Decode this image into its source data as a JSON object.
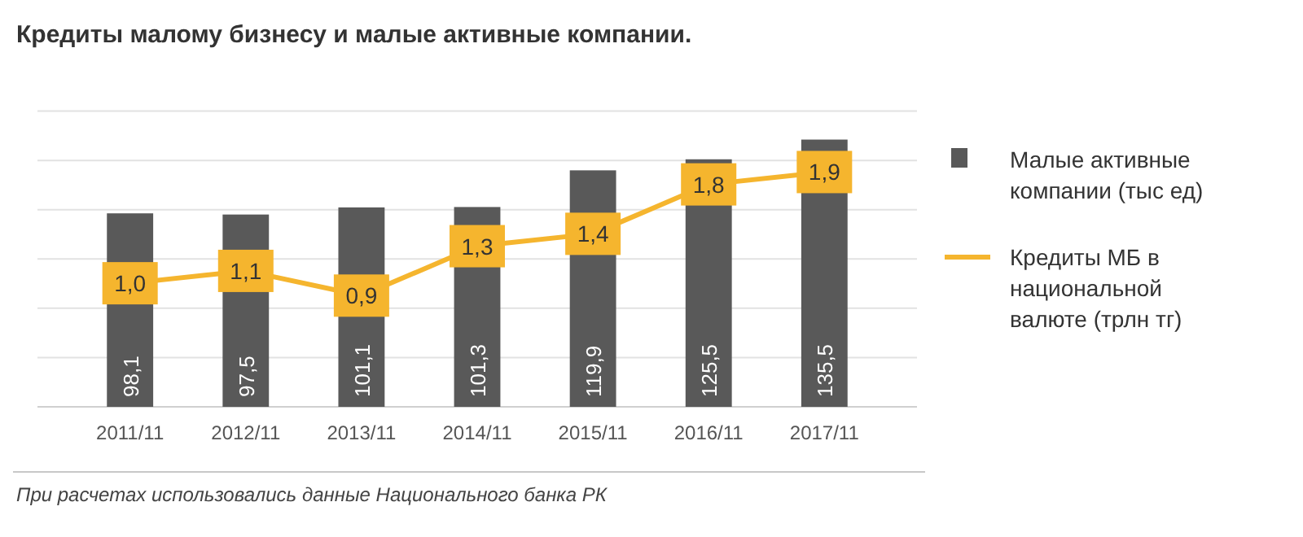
{
  "chart_data": {
    "type": "bar",
    "title": "Кредиты малому бизнесу и малые активные компании.",
    "categories": [
      "2011/11",
      "2012/11",
      "2013/11",
      "2014/11",
      "2015/11",
      "2016/11",
      "2017/11"
    ],
    "series": [
      {
        "name": "Малые активные компании (тыс ед)",
        "color": "#595959",
        "values": [
          98.1,
          97.5,
          101.1,
          101.3,
          119.9,
          125.5,
          135.5
        ],
        "value_labels": [
          "98,1",
          "97,5",
          "101,1",
          "101,3",
          "119,9",
          "125,5",
          "135,5"
        ]
      },
      {
        "name": "Кредиты МБ в национальной валюте (трлн тг)",
        "type": "line",
        "axis": "y2",
        "color": "#f5b52e",
        "marker": "square",
        "values": [
          1.0,
          1.1,
          0.9,
          1.3,
          1.4,
          1.8,
          1.9
        ],
        "value_labels": [
          "1,0",
          "1,1",
          "0,9",
          "1,3",
          "1,4",
          "1,8",
          "1,9"
        ]
      }
    ],
    "grid": "y",
    "legend": "right",
    "annotations": [
      "При расчетах использовались данные Национального банка РК"
    ]
  }
}
